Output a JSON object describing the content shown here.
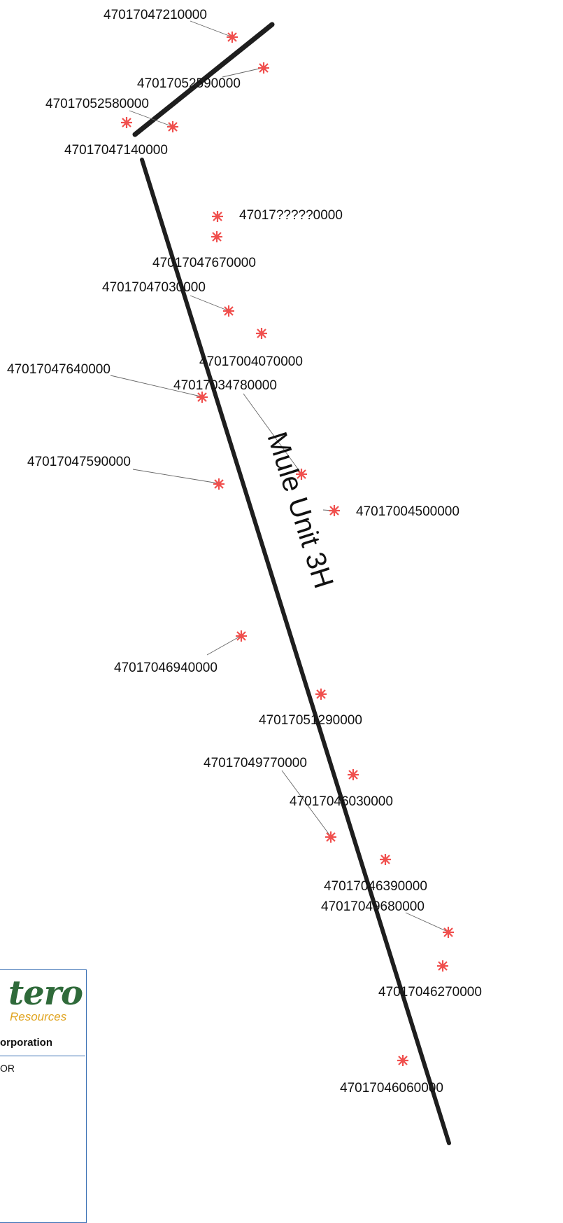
{
  "unit_label": "Mule Unit 3H",
  "colors": {
    "well_marker": "#f0504e",
    "wellbore": "#1e1e1e",
    "leader": "#666666"
  },
  "wells": [
    "47017047210000",
    "47017052590000",
    "47017052580000",
    "47017047140000",
    "47017?????0000",
    "47017047670000",
    "47017047030000",
    "47017004070000",
    "47017047640000",
    "47017034780000",
    "47017047590000",
    "47017004500000",
    "47017046940000",
    "47017051290000",
    "47017049770000",
    "47017046030000",
    "47017046390000",
    "47017049680000",
    "47017046270000",
    "47017046060000"
  ],
  "legend": {
    "logo": "tero",
    "logo_sub": "Resources",
    "company": "orporation",
    "operator": "OR"
  }
}
